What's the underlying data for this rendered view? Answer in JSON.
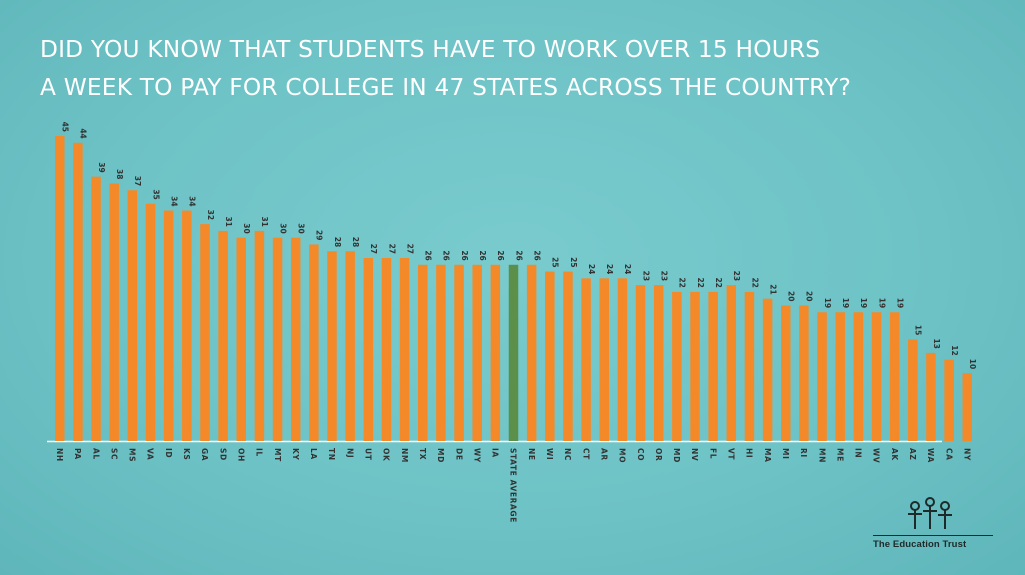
{
  "title_lines": [
    "DID YOU KNOW THAT STUDENTS HAVE TO WORK OVER 15 HOURS",
    "A WEEK TO PAY FOR COLLEGE IN 47 STATES ACROSS THE COUNTRY?"
  ],
  "logo_text": "The Education Trust",
  "colors": {
    "bar": "#f4892a",
    "average_bar": "#5c8f4a",
    "label": "#333333",
    "axis": "#ffffff"
  },
  "chart_data": {
    "type": "bar",
    "title": "DID YOU KNOW THAT STUDENTS HAVE TO WORK OVER 15 HOURS A WEEK TO PAY FOR COLLEGE IN 47 STATES ACROSS THE COUNTRY?",
    "xlabel": "",
    "ylabel": "",
    "ylim": [
      0,
      47
    ],
    "grid": false,
    "highlight": "STATE AVERAGE",
    "categories": [
      "NH",
      "PA",
      "AL",
      "SC",
      "MS",
      "VA",
      "ID",
      "KS",
      "GA",
      "SD",
      "OH",
      "IL",
      "MT",
      "KY",
      "LA",
      "TN",
      "NJ",
      "UT",
      "OK",
      "NM",
      "TX",
      "MD",
      "DE",
      "WY",
      "IA",
      "STATE AVERAGE",
      "NE",
      "WI",
      "NC",
      "CT",
      "AR",
      "MO",
      "CO",
      "OR",
      "MD",
      "NV",
      "FL",
      "VT",
      "HI",
      "MA",
      "MI",
      "RI",
      "MN",
      "ME",
      "IN",
      "WV",
      "AK",
      "AZ",
      "WA",
      "CA",
      "NY"
    ],
    "values": [
      45,
      44,
      39,
      38,
      37,
      35,
      34,
      34,
      32,
      31,
      30,
      31,
      30,
      30,
      29,
      28,
      28,
      27,
      27,
      27,
      26,
      26,
      26,
      26,
      26,
      26,
      26,
      25,
      25,
      24,
      24,
      24,
      23,
      23,
      22,
      22,
      22,
      23,
      22,
      21,
      20,
      20,
      19,
      19,
      19,
      19,
      19,
      15,
      13,
      12,
      10
    ],
    "value_labels": [
      "45",
      "44",
      "39",
      "38",
      "37",
      "35",
      "34",
      "34",
      "32",
      "31",
      "30",
      "31",
      "30",
      "30",
      "29",
      "28",
      "28",
      "27",
      "27",
      "27",
      "26",
      "26",
      "26",
      "26",
      "26",
      "26",
      "26",
      "25",
      "25",
      "24",
      "24",
      "24",
      "23",
      "23",
      "22",
      "22",
      "22",
      "23",
      "22",
      "21",
      "20",
      "20",
      "19",
      "19",
      "19",
      "19",
      "19",
      "15",
      "13",
      "12",
      "10"
    ]
  }
}
